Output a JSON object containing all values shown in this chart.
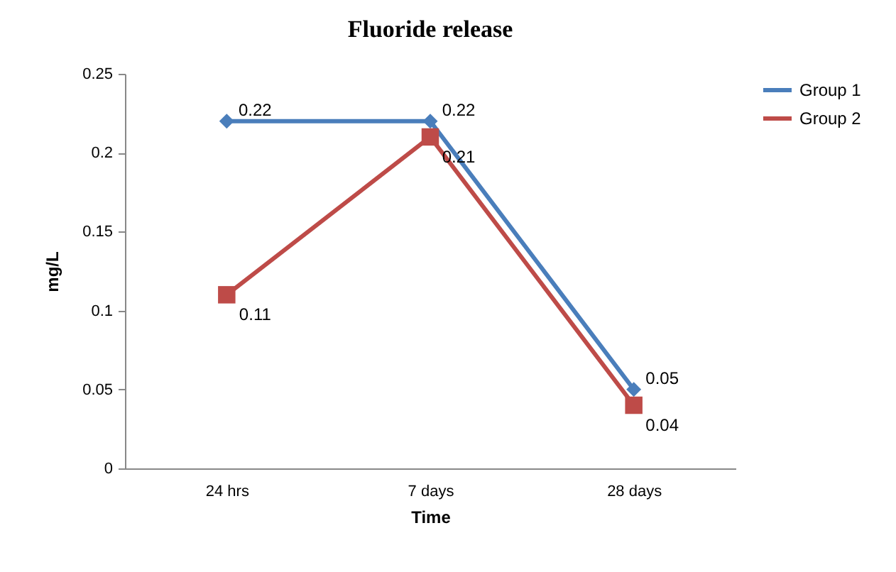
{
  "chart_data": {
    "type": "line",
    "title": "Fluoride release",
    "xlabel": "Time",
    "ylabel": "mg/L",
    "categories": [
      "24 hrs",
      "7 days",
      "28 days"
    ],
    "series": [
      {
        "name": "Group 1",
        "color": "#4a7ebb",
        "marker": "diamond",
        "values": [
          0.22,
          0.22,
          0.05
        ]
      },
      {
        "name": "Group 2",
        "color": "#be4b48",
        "marker": "square",
        "values": [
          0.11,
          0.21,
          0.04
        ]
      }
    ],
    "ylim": [
      0,
      0.25
    ],
    "yticks": [
      0,
      0.05,
      0.1,
      0.15,
      0.2,
      0.25
    ],
    "grid": false,
    "legend": "right",
    "data_labels": true
  }
}
